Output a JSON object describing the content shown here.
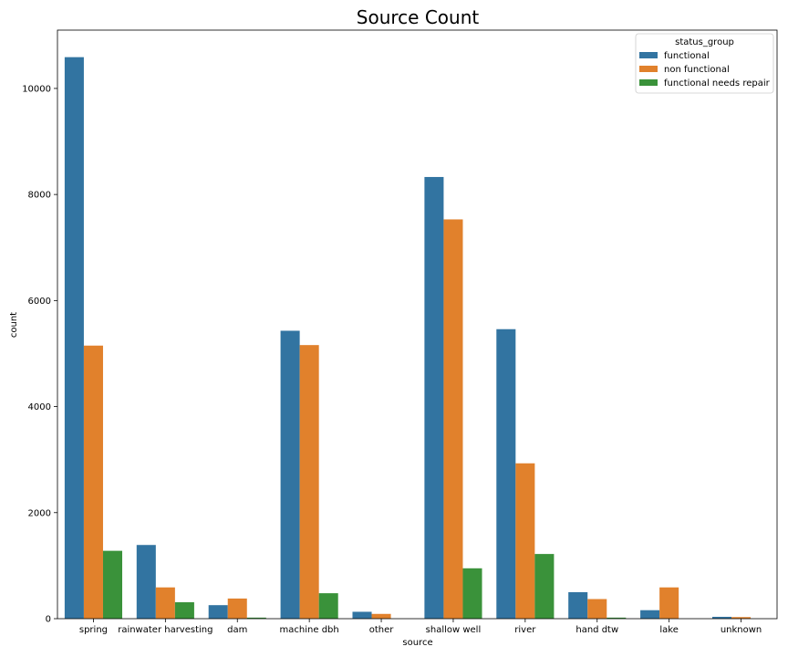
{
  "chart_data": {
    "type": "bar",
    "title": "Source Count",
    "xlabel": "source",
    "ylabel": "count",
    "ylim": [
      0,
      11100
    ],
    "yticks": [
      0,
      2000,
      4000,
      6000,
      8000,
      10000
    ],
    "grid": false,
    "legend": {
      "title": "status_group",
      "position": "top-right"
    },
    "categories": [
      "spring",
      "rainwater harvesting",
      "dam",
      "machine dbh",
      "other",
      "shallow well",
      "river",
      "hand dtw",
      "lake",
      "unknown"
    ],
    "series": [
      {
        "name": "functional",
        "color": "#3274a1",
        "values": [
          10590,
          1390,
          255,
          5430,
          130,
          8330,
          5460,
          500,
          160,
          35
        ]
      },
      {
        "name": "non functional",
        "color": "#e1812c",
        "values": [
          5150,
          590,
          380,
          5160,
          90,
          7530,
          2930,
          370,
          590,
          30
        ]
      },
      {
        "name": "functional needs repair",
        "color": "#3a923a",
        "values": [
          1280,
          310,
          20,
          480,
          0,
          950,
          1220,
          20,
          0,
          0
        ]
      }
    ]
  }
}
